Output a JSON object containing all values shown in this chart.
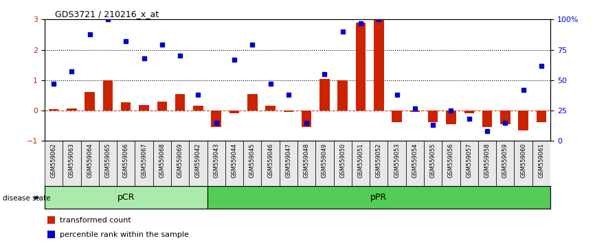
{
  "title": "GDS3721 / 210216_x_at",
  "samples": [
    "GSM559062",
    "GSM559063",
    "GSM559064",
    "GSM559065",
    "GSM559066",
    "GSM559067",
    "GSM559068",
    "GSM559069",
    "GSM559042",
    "GSM559043",
    "GSM559044",
    "GSM559045",
    "GSM559046",
    "GSM559047",
    "GSM559048",
    "GSM559049",
    "GSM559050",
    "GSM559051",
    "GSM559052",
    "GSM559053",
    "GSM559054",
    "GSM559055",
    "GSM559056",
    "GSM559057",
    "GSM559058",
    "GSM559059",
    "GSM559060",
    "GSM559061"
  ],
  "transformed_count": [
    0.05,
    0.08,
    0.62,
    1.0,
    0.28,
    0.18,
    0.3,
    0.55,
    0.15,
    -0.55,
    -0.08,
    0.55,
    0.15,
    -0.05,
    -0.55,
    1.05,
    1.0,
    2.9,
    3.0,
    -0.38,
    -0.05,
    -0.38,
    -0.45,
    -0.08,
    -0.55,
    -0.45,
    -0.65,
    -0.38
  ],
  "percentile_rank": [
    47,
    57,
    88,
    100,
    82,
    68,
    79,
    70,
    38,
    15,
    67,
    79,
    47,
    38,
    15,
    55,
    90,
    97,
    100,
    38,
    27,
    13,
    25,
    18,
    8,
    15,
    42,
    62
  ],
  "pCR_count": 9,
  "pPR_count": 19,
  "bar_color": "#CC2200",
  "dot_color": "#0000CC",
  "pCR_color": "#AAEAAA",
  "pPR_color": "#55CC55",
  "ylim_left": [
    -1,
    3
  ],
  "ylim_right": [
    0,
    100
  ],
  "yticks_left": [
    -1,
    0,
    1,
    2,
    3
  ],
  "yticks_right": [
    0,
    25,
    50,
    75,
    100
  ],
  "bg_color": "#E8E8E8"
}
